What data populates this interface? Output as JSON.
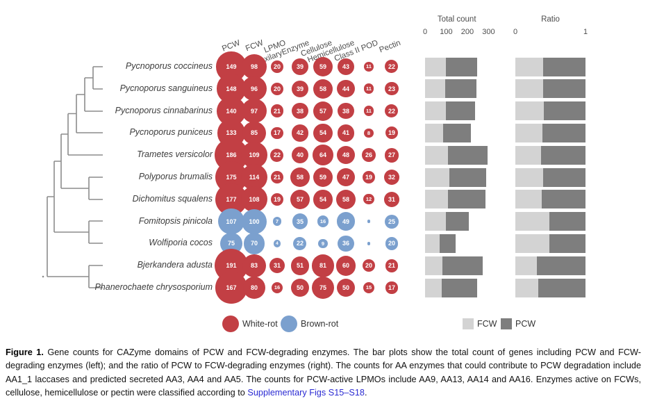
{
  "chart_data": {
    "type": "bubble+stacked-bar",
    "bubble_columns": [
      "PCW",
      "FCW",
      "LPMO",
      "AuxilaryEnzyme",
      "Cellulose",
      "Hemicellulose",
      "Class II POD",
      "Pectin"
    ],
    "rows": [
      {
        "species": "Pycnoporus coccineus",
        "rot": "white",
        "values": [
          149,
          98,
          20,
          39,
          59,
          43,
          11,
          22
        ]
      },
      {
        "species": "Pycnoporus sanguineus",
        "rot": "white",
        "values": [
          148,
          96,
          20,
          39,
          58,
          44,
          11,
          23
        ]
      },
      {
        "species": "Pycnoporus cinnabarinus",
        "rot": "white",
        "values": [
          140,
          97,
          21,
          38,
          57,
          38,
          11,
          22
        ]
      },
      {
        "species": "Pycnoporus puniceus",
        "rot": "white",
        "values": [
          133,
          85,
          17,
          42,
          54,
          41,
          8,
          19
        ]
      },
      {
        "species": "Trametes versicolor",
        "rot": "white",
        "values": [
          186,
          109,
          22,
          40,
          64,
          48,
          26,
          27
        ]
      },
      {
        "species": "Polyporus brumalis",
        "rot": "white",
        "values": [
          175,
          114,
          21,
          58,
          59,
          47,
          19,
          32
        ]
      },
      {
        "species": "Dichomitus squalens",
        "rot": "white",
        "values": [
          177,
          108,
          19,
          57,
          54,
          58,
          12,
          31
        ]
      },
      {
        "species": "Fomitopsis pinicola",
        "rot": "brown",
        "values": [
          107,
          100,
          7,
          35,
          16,
          49,
          "*",
          25
        ]
      },
      {
        "species": "Wolfiporia cocos",
        "rot": "brown",
        "values": [
          75,
          70,
          4,
          22,
          9,
          36,
          "*",
          20
        ]
      },
      {
        "species": "Bjerkandera adusta",
        "rot": "white",
        "values": [
          191,
          83,
          31,
          51,
          81,
          60,
          20,
          21
        ]
      },
      {
        "species": "Phanerochaete chrysosporium",
        "rot": "white",
        "values": [
          167,
          80,
          16,
          50,
          75,
          50,
          15,
          17
        ]
      }
    ],
    "bar_panels": [
      {
        "title": "Total count",
        "ticks": [
          0,
          100,
          200,
          300
        ],
        "range": [
          0,
          300
        ],
        "stack_order": [
          "FCW",
          "PCW"
        ]
      },
      {
        "title": "Ratio",
        "ticks": [
          0,
          1
        ],
        "range": [
          0,
          1
        ],
        "stack_order": [
          "FCW",
          "PCW"
        ]
      }
    ],
    "legend": {
      "rot_types": [
        {
          "label": "White-rot",
          "color": "#C23F44"
        },
        {
          "label": "Brown-rot",
          "color": "#7BA0CE"
        }
      ],
      "bar_series": [
        {
          "label": "FCW",
          "color": "#D3D3D3"
        },
        {
          "label": "PCW",
          "color": "#7E7E7E"
        }
      ]
    }
  },
  "caption": {
    "label": "Figure 1.",
    "body": " Gene counts for CAZyme domains of PCW and FCW-degrading enzymes. The bar plots show the total count of genes including PCW and FCW-degrading enzymes (left); and the ratio of PCW to FCW-degrading enzymes (right). The counts for AA enzymes that could contribute to PCW degradation include AA1_1 laccases and predicted secreted AA3, AA4 and AA5. The counts for PCW-active LPMOs include AA9, AA13, AA14 and AA16. Enzymes active on FCWs, cellulose, hemicellulose or pectin were classified according to ",
    "link": "Supplementary Figs S15–S18",
    "end": "."
  }
}
